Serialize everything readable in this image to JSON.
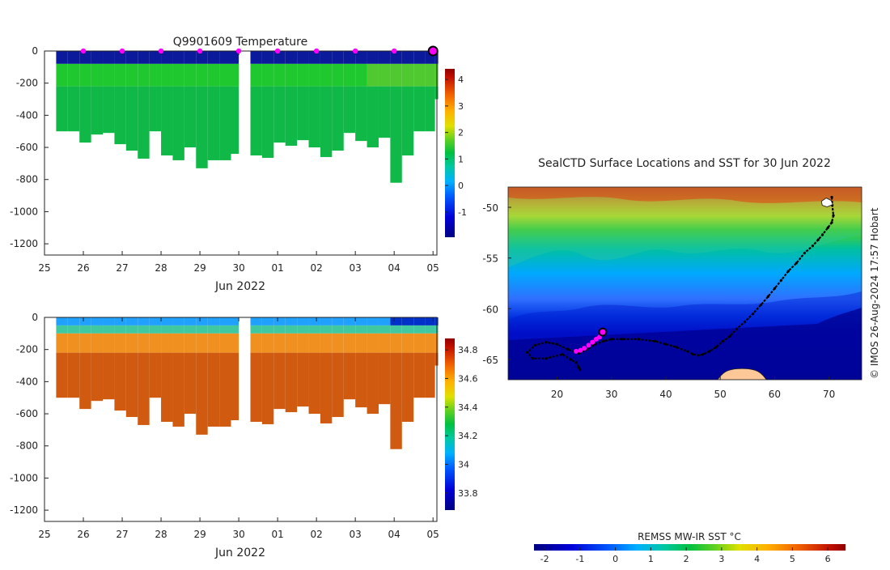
{
  "chart_data": [
    {
      "type": "heatmap",
      "title": "Q9901609  Temperature",
      "xlabel": "Jun 2022",
      "ylabel": "",
      "x_ticks": [
        "25",
        "26",
        "27",
        "28",
        "29",
        "30",
        "01",
        "02",
        "03",
        "04",
        "05"
      ],
      "x_range": [
        25,
        35.1
      ],
      "y_ticks": [
        0,
        -200,
        -400,
        -600,
        -800,
        -1000,
        -1200
      ],
      "ylim": [
        -1270,
        0
      ],
      "colorbar": {
        "ticks": [
          -1,
          0,
          1,
          2,
          3,
          4
        ],
        "range": [
          -1.95,
          4.4
        ]
      },
      "surfacing_markers_x": [
        26,
        27,
        28,
        29,
        30,
        31,
        32,
        33,
        34
      ],
      "last_position_x": 35,
      "profiles_x": [
        25.3,
        25.6,
        25.9,
        26.2,
        26.5,
        26.8,
        27.1,
        27.4,
        27.7,
        28.0,
        28.3,
        28.6,
        28.9,
        29.2,
        29.5,
        29.8,
        30.3,
        30.6,
        30.9,
        31.2,
        31.5,
        31.8,
        32.1,
        32.4,
        32.7,
        33.0,
        33.3,
        33.6,
        33.9,
        34.2,
        34.5,
        34.8,
        35.05
      ],
      "profile_max_depth": [
        -500,
        -500,
        -570,
        -520,
        -510,
        -580,
        -620,
        -670,
        -500,
        -650,
        -680,
        -600,
        -730,
        -680,
        -680,
        -640,
        -650,
        -665,
        -570,
        -590,
        -555,
        -600,
        -660,
        -620,
        -510,
        -560,
        -600,
        -540,
        -820,
        -650,
        -500,
        -500,
        -300
      ],
      "note": "temperature roughly -1.5 at surface, 1 to 2 below 100 m"
    },
    {
      "type": "heatmap",
      "title": "",
      "xlabel": "Jun 2022",
      "x_ticks": [
        "25",
        "26",
        "27",
        "28",
        "29",
        "30",
        "01",
        "02",
        "03",
        "04",
        "05"
      ],
      "y_ticks": [
        0,
        -200,
        -400,
        -600,
        -800,
        -1000,
        -1200
      ],
      "ylim": [
        -1270,
        0
      ],
      "colorbar": {
        "ticks": [
          33.8,
          34,
          34.2,
          34.4,
          34.6,
          34.8
        ],
        "labels": [
          "33.8",
          "34",
          "34.2",
          "34.4",
          "34.6",
          "34.8"
        ],
        "range": [
          33.68,
          34.88
        ]
      },
      "note": "salinity roughly 33.9 at surface, 34.7 below 200 m"
    },
    {
      "type": "heatmap",
      "title": "SealCTD Surface Locations and SST for 30 Jun 2022",
      "xlim": [
        11,
        76
      ],
      "ylim": [
        -67,
        -48
      ],
      "x_ticks": [
        20,
        30,
        40,
        50,
        60,
        70
      ],
      "y_ticks": [
        -50,
        -55,
        -60,
        -65
      ],
      "track_lon": [
        70.5,
        70.6,
        70.8,
        70.5,
        69.8,
        68.8,
        68.0,
        67.0,
        65.5,
        64.0,
        62.5,
        61.2,
        60.0,
        58.8,
        57.5,
        56.0,
        54.5,
        53.0,
        51.8,
        50.5,
        49.2,
        48.0,
        46.8,
        46.0,
        45.0,
        44.0,
        42.0,
        40.0,
        38.0,
        35.0,
        32.0,
        30.0,
        28.5,
        27.0,
        25.5,
        24.0,
        22.0,
        20.0,
        18.0,
        16.0,
        14.5,
        15.5,
        18.0,
        21.0,
        22.5,
        23.5,
        24.0,
        24.2
      ],
      "track_lat": [
        -49.0,
        -49.8,
        -50.8,
        -51.5,
        -52.0,
        -52.7,
        -53.2,
        -53.8,
        -54.5,
        -55.5,
        -56.3,
        -57.2,
        -58.0,
        -58.8,
        -59.6,
        -60.5,
        -61.3,
        -62.0,
        -62.7,
        -63.2,
        -63.8,
        -64.2,
        -64.5,
        -64.6,
        -64.5,
        -64.2,
        -63.8,
        -63.5,
        -63.2,
        -63.0,
        -63.0,
        -63.0,
        -63.2,
        -63.5,
        -64.0,
        -64.4,
        -64.0,
        -63.5,
        -63.3,
        -63.6,
        -64.3,
        -64.9,
        -64.9,
        -64.5,
        -65.0,
        -65.3,
        -65.8,
        -66.0
      ],
      "recent_lon": [
        23.5,
        24.3,
        25.0,
        25.8,
        26.5,
        27.2,
        27.8
      ],
      "recent_lat": [
        -64.2,
        -64.1,
        -63.9,
        -63.6,
        -63.3,
        -63.0,
        -62.8
      ],
      "current_position": [
        28.4,
        -62.3
      ],
      "land_lon_range": [
        49.5,
        58.5
      ],
      "land_top_lat": -65.9
    },
    {
      "type": "heatmap",
      "title": "REMSS MW-IR SST °C",
      "colorbar_ticks": [
        -2,
        -1,
        0,
        1,
        2,
        3,
        4,
        5,
        6
      ],
      "colorbar_range": [
        -2.3,
        6.5
      ]
    }
  ],
  "credit": "© IMOS 26-Aug-2024 17:57 Hobart"
}
